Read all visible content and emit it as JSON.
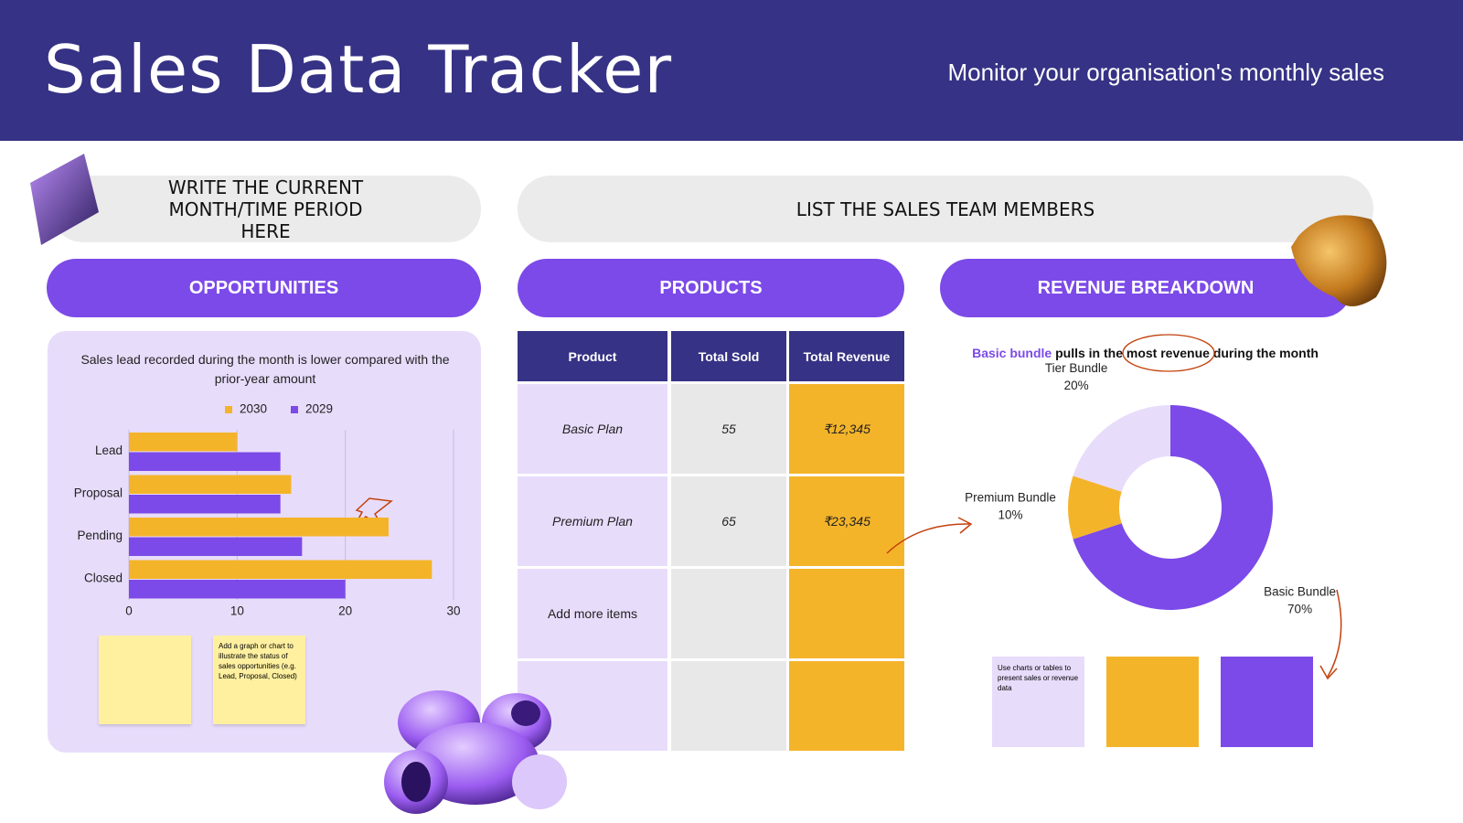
{
  "header": {
    "title": "Sales Data Tracker",
    "subtitle": "Monitor your organisation's monthly sales"
  },
  "period_box": "WRITE THE CURRENT MONTH/TIME PERIOD HERE",
  "team_box": "LIST THE SALES TEAM MEMBERS",
  "opportunities": {
    "heading": "OPPORTUNITIES",
    "chart": {
      "type": "hbar",
      "title": "Sales lead recorded during the month is lower compared with the prior-year amount",
      "categories": [
        "Lead",
        "Proposal",
        "Pending",
        "Closed"
      ],
      "series": [
        {
          "name": "2030",
          "color": "#f4b42a",
          "values": [
            10,
            15,
            24,
            28
          ]
        },
        {
          "name": "2029",
          "color": "#7c4ae8",
          "values": [
            14,
            14,
            16,
            20
          ]
        }
      ],
      "xlim": [
        0,
        30
      ],
      "xticks": [
        0,
        10,
        20,
        30
      ],
      "grid": true
    },
    "sticky_note": "Add a graph or chart to illustrate the status of sales opportunities (e.g. Lead, Proposal, Closed)"
  },
  "products": {
    "heading": "PRODUCTS",
    "table": {
      "columns": [
        "Product",
        "Total Sold",
        "Total Revenue"
      ],
      "rows": [
        [
          "Basic Plan",
          55,
          "₹12,345"
        ],
        [
          "Premium Plan",
          65,
          "₹23,345"
        ],
        [
          "Add more items"
        ]
      ]
    }
  },
  "revenue": {
    "heading": "REVENUE BREAKDOWN",
    "headline": {
      "highlight": "Basic bundle",
      "rest_before": "pulls in the",
      "circled": "most revenue",
      "rest_after": "during the month"
    },
    "chart": {
      "type": "donut",
      "categories": [
        "Basic Bundle",
        "Premium Bundle",
        "Tier Bundle"
      ],
      "values": [
        70,
        10,
        20
      ],
      "value_labels": [
        "70%",
        "10%",
        "20%"
      ],
      "colors": [
        "#7c4ae8",
        "#f4b42a",
        "#e8dcfb"
      ]
    },
    "sticky_note": "Use charts or tables to present sales or revenue data"
  }
}
